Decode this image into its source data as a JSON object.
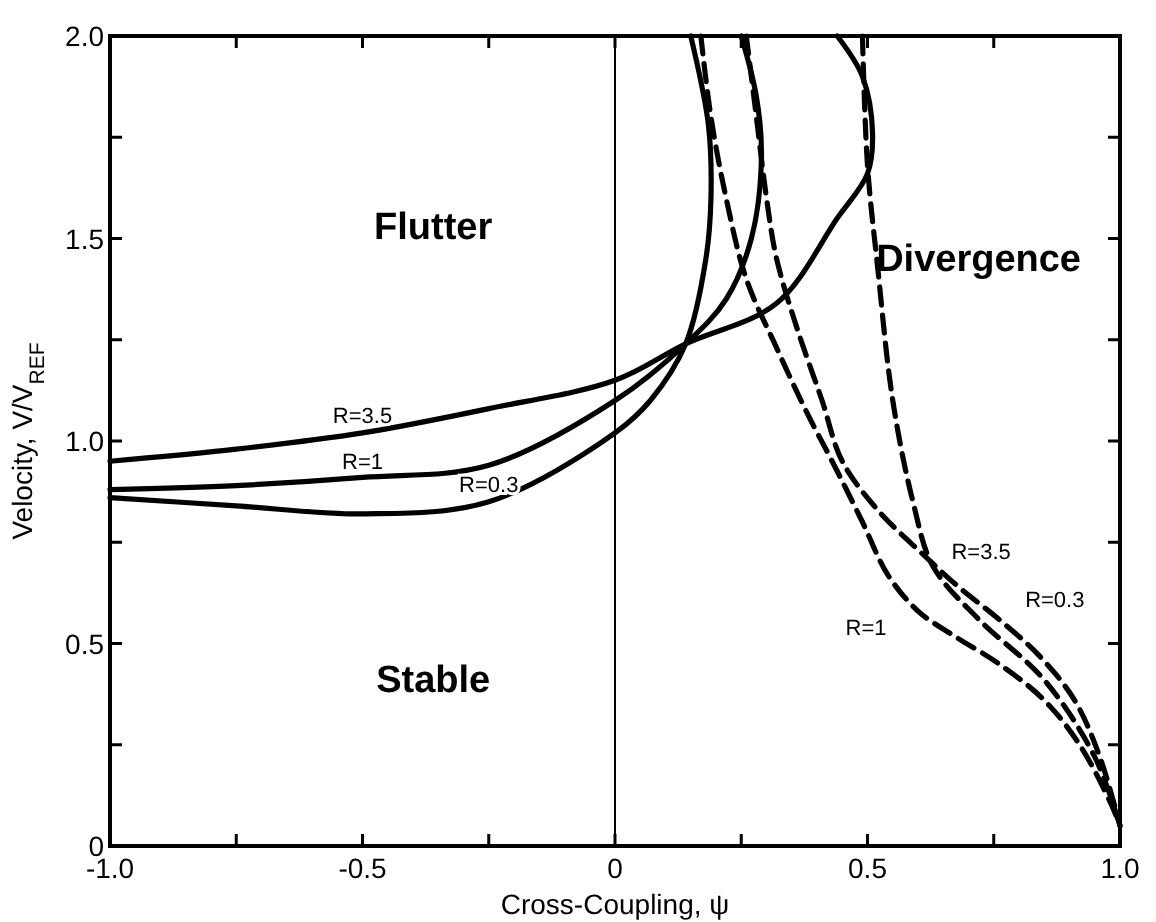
{
  "chart_data": {
    "type": "line",
    "xlabel": "Cross-Coupling, ψ",
    "ylabel": "Velocity, V/V$_{REF}$",
    "xlim": [
      -1,
      1
    ],
    "ylim": [
      0,
      2
    ],
    "xticks": [
      {
        "value": -1,
        "label": "-1.0"
      },
      {
        "value": -0.75,
        "label": null
      },
      {
        "value": -0.5,
        "label": "-0.5"
      },
      {
        "value": -0.25,
        "label": null
      },
      {
        "value": 0,
        "label": "0"
      },
      {
        "value": 0.25,
        "label": null
      },
      {
        "value": 0.5,
        "label": "0.5"
      },
      {
        "value": 0.75,
        "label": null
      },
      {
        "value": 1,
        "label": "1.0"
      }
    ],
    "yticks": [
      {
        "value": 0,
        "label": "0"
      },
      {
        "value": 0.25,
        "label": null
      },
      {
        "value": 0.5,
        "label": "0.5"
      },
      {
        "value": 0.75,
        "label": null
      },
      {
        "value": 1,
        "label": "1.0"
      },
      {
        "value": 1.25,
        "label": null
      },
      {
        "value": 1.5,
        "label": "1.5"
      },
      {
        "value": 1.75,
        "label": null
      },
      {
        "value": 2,
        "label": "2.0"
      }
    ],
    "grid": false,
    "ref_lines": [
      {
        "axis": "x",
        "value": 0,
        "color": "#000000",
        "line_style": "solid"
      }
    ],
    "annotations": [
      "Flutter",
      "Divergence",
      "Stable"
    ],
    "series": [
      {
        "name": "R=3.5",
        "color": "#000000",
        "line_style": "solid",
        "x": [
          -1,
          -0.75,
          -0.5,
          -0.25,
          0,
          0.14,
          0.32,
          0.44,
          0.5,
          0.51,
          0.49,
          0.44
        ],
        "values": [
          0.95,
          0.98,
          1.02,
          1.08,
          1.15,
          1.24,
          1.34,
          1.55,
          1.66,
          1.76,
          1.9,
          2.0
        ]
      },
      {
        "name": "R=1",
        "color": "#000000",
        "line_style": "solid",
        "x": [
          -1,
          -0.75,
          -0.5,
          -0.25,
          0,
          0.14,
          0.22,
          0.27,
          0.29,
          0.28,
          0.25
        ],
        "values": [
          0.88,
          0.89,
          0.91,
          0.94,
          1.1,
          1.24,
          1.35,
          1.5,
          1.7,
          1.85,
          2.0
        ]
      },
      {
        "name": "R=0.3",
        "color": "#000000",
        "line_style": "solid",
        "x": [
          -1,
          -0.75,
          -0.5,
          -0.25,
          0,
          0.07,
          0.14,
          0.18,
          0.19,
          0.185,
          0.15
        ],
        "values": [
          0.86,
          0.84,
          0.82,
          0.85,
          1.02,
          1.1,
          1.24,
          1.45,
          1.6,
          1.78,
          2.0
        ]
      },
      {
        "name": "R=3.5",
        "color": "#000000",
        "line_style": "dashed",
        "x": [
          0.49,
          0.5,
          0.52,
          0.55,
          0.59,
          0.63,
          0.72,
          0.85,
          0.95,
          1.0
        ],
        "values": [
          2.0,
          1.68,
          1.43,
          1.1,
          0.85,
          0.69,
          0.56,
          0.41,
          0.22,
          0.05
        ]
      },
      {
        "name": "R=1",
        "color": "#000000",
        "line_style": "dashed",
        "x": [
          0.17,
          0.19,
          0.22,
          0.26,
          0.32,
          0.38,
          0.43,
          0.49,
          0.54,
          0.6,
          0.67,
          0.76,
          0.85,
          0.92,
          0.98,
          1.0
        ],
        "values": [
          2.0,
          1.8,
          1.6,
          1.4,
          1.23,
          1.07,
          0.95,
          0.8,
          0.67,
          0.58,
          0.52,
          0.45,
          0.36,
          0.25,
          0.11,
          0.05
        ]
      },
      {
        "name": "R=0.3",
        "color": "#000000",
        "line_style": "dashed",
        "x": [
          0.26,
          0.28,
          0.3,
          0.32,
          0.36,
          0.41,
          0.45,
          0.52,
          0.61,
          0.68,
          0.76,
          0.84,
          0.91,
          0.96,
          1.0
        ],
        "values": [
          2.0,
          1.8,
          1.6,
          1.45,
          1.28,
          1.1,
          0.95,
          0.83,
          0.72,
          0.64,
          0.56,
          0.47,
          0.36,
          0.22,
          0.05
        ]
      }
    ]
  }
}
